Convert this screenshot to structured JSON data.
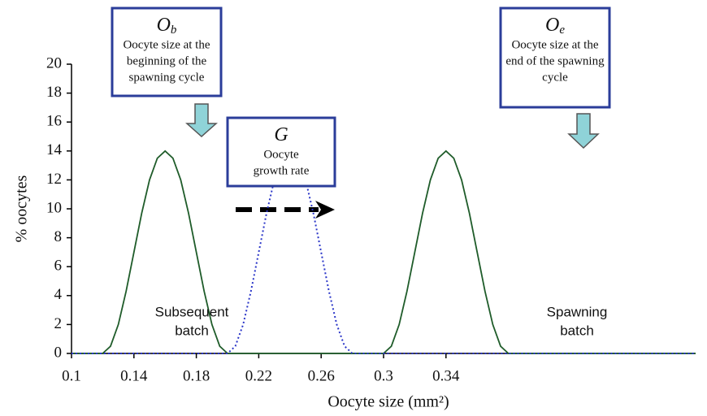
{
  "chart_data": {
    "type": "line",
    "x_label": "Oocyte size (mm²)",
    "y_label": "% oocytes",
    "xlim": [
      0.1,
      0.5
    ],
    "ylim": [
      0,
      20
    ],
    "xticks": [
      0.1,
      0.14,
      0.18,
      0.22,
      0.26,
      0.3,
      0.34
    ],
    "yticks": [
      0,
      2,
      4,
      6,
      8,
      10,
      12,
      14,
      16,
      18,
      20
    ],
    "series": [
      {
        "color": "#1f5c2a",
        "line_style": "solid",
        "x": [
          0.1,
          0.12,
          0.125,
          0.13,
          0.135,
          0.14,
          0.145,
          0.15,
          0.155,
          0.16,
          0.165,
          0.17,
          0.175,
          0.18,
          0.185,
          0.19,
          0.195,
          0.2,
          0.3,
          0.305,
          0.31,
          0.315,
          0.32,
          0.325,
          0.33,
          0.335,
          0.34,
          0.345,
          0.35,
          0.355,
          0.36,
          0.365,
          0.37,
          0.375,
          0.38,
          0.5
        ],
        "values": [
          0,
          0,
          0.5,
          2,
          4.3,
          7,
          9.7,
          12,
          13.5,
          14,
          13.5,
          12,
          9.7,
          7,
          4.3,
          2,
          0.5,
          0,
          0,
          0.5,
          2,
          4.3,
          7,
          9.7,
          12,
          13.5,
          14,
          13.5,
          12,
          9.7,
          7,
          4.3,
          2,
          0.5,
          0,
          0
        ]
      },
      {
        "color": "#2a35c8",
        "line_style": "dotted",
        "x": [
          0.1,
          0.2,
          0.205,
          0.21,
          0.215,
          0.22,
          0.225,
          0.23,
          0.235,
          0.24,
          0.245,
          0.25,
          0.255,
          0.26,
          0.265,
          0.27,
          0.275,
          0.28,
          0.5
        ],
        "values": [
          0,
          0,
          0.5,
          2,
          4.3,
          7,
          9.7,
          12,
          13.5,
          14,
          13.5,
          12,
          9.7,
          7,
          4.3,
          2,
          0.5,
          0,
          0
        ]
      }
    ],
    "annotations": [
      {
        "title": "O",
        "sub": "b",
        "lines": [
          "Oocyte size at the",
          "beginning of the",
          "spawning cycle"
        ]
      },
      {
        "title": "G",
        "lines": [
          "Oocyte",
          "growth rate"
        ]
      },
      {
        "title": "O",
        "sub": "e",
        "lines": [
          "Oocyte size at the",
          "end of the spawning",
          "cycle"
        ]
      }
    ],
    "plot_labels": [
      {
        "lines": [
          "Subsequent",
          "batch"
        ]
      },
      {
        "lines": [
          "Spawning",
          "batch"
        ]
      }
    ]
  }
}
